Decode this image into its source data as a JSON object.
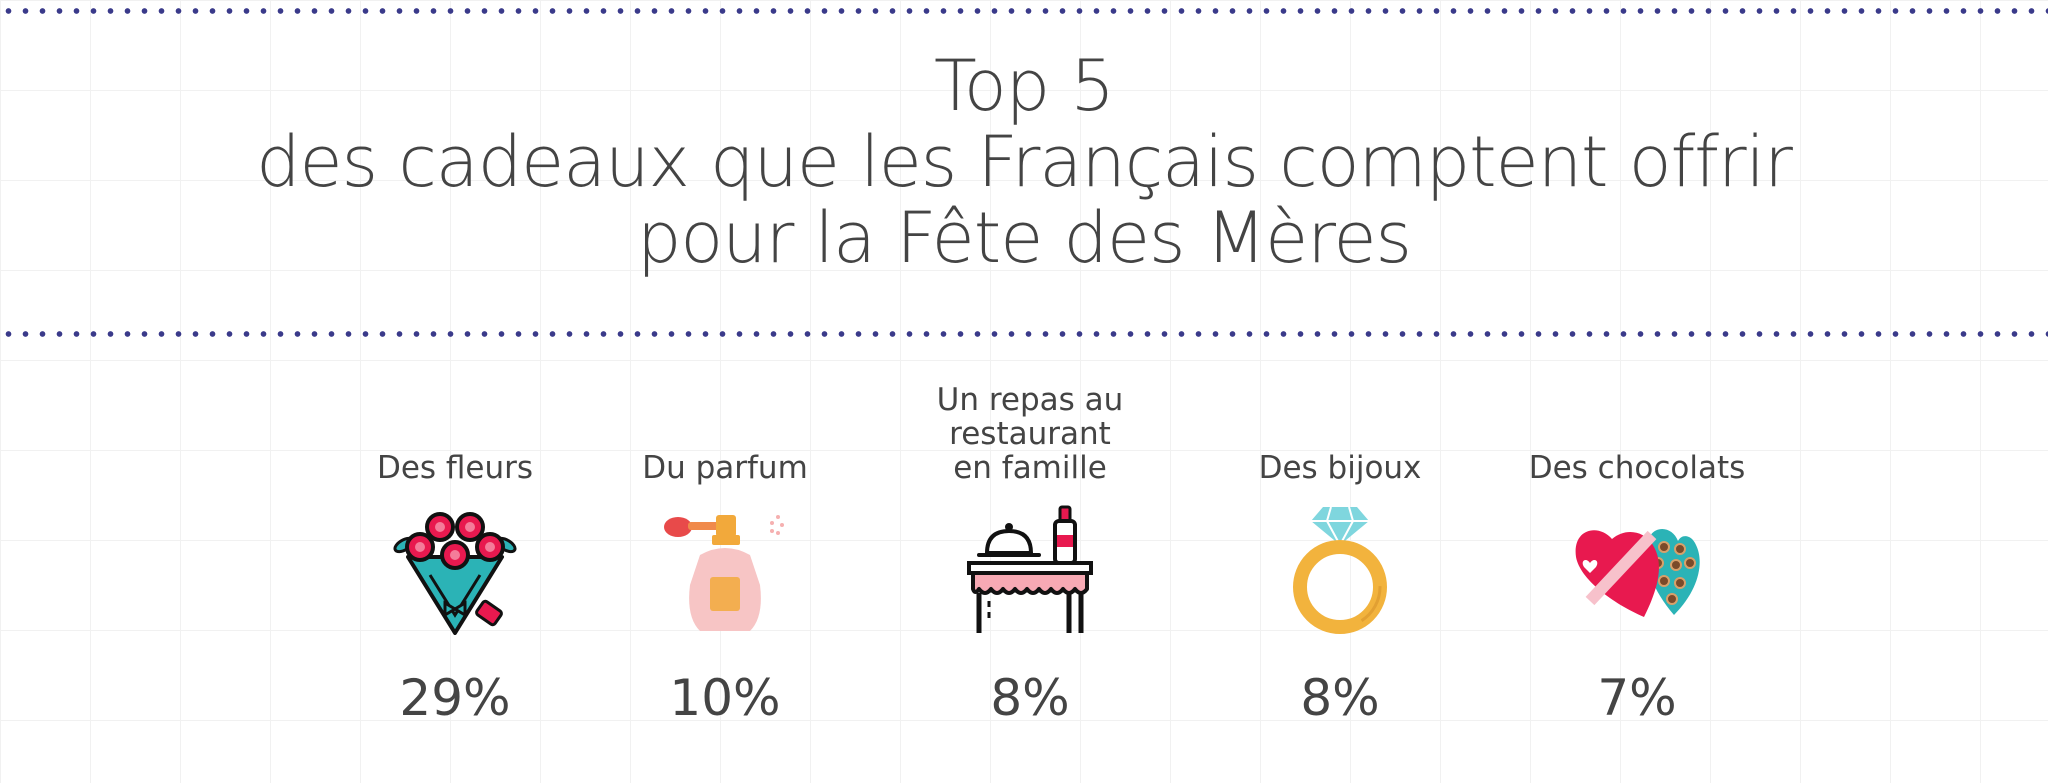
{
  "title": {
    "line1": "Top 5",
    "line2": "des cadeaux que les Français comptent offrir",
    "line3": "pour la Fête des Mères"
  },
  "gifts": [
    {
      "label": "Des fleurs",
      "percent": "29%",
      "icon": "flower-bouquet-icon"
    },
    {
      "label": "Du parfum",
      "percent": "10%",
      "icon": "perfume-bottle-icon"
    },
    {
      "label_lines": [
        "Un repas au",
        "restaurant",
        "en famille"
      ],
      "percent": "8%",
      "icon": "restaurant-table-icon"
    },
    {
      "label": "Des bijoux",
      "percent": "8%",
      "icon": "diamond-ring-icon"
    },
    {
      "label": "Des chocolats",
      "percent": "7%",
      "icon": "chocolate-box-icon"
    }
  ],
  "colors": {
    "dots": "#3a3a8a",
    "text": "#444444",
    "accent_pink": "#e8194f",
    "accent_teal": "#2bb3b6"
  }
}
